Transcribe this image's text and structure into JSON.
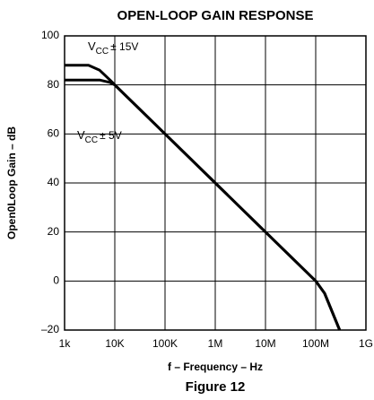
{
  "chart_data": {
    "type": "line",
    "title": "OPEN-LOOP GAIN RESPONSE",
    "x_label": "f – Frequency – Hz",
    "y_label": "Open0Loop Gain – dB",
    "caption": "Figure 12",
    "log_x": true,
    "grid": true,
    "xlim": [
      1000,
      1000000000
    ],
    "ylim": [
      -20,
      100
    ],
    "xticks": [
      {
        "value": 1000,
        "label": "1k"
      },
      {
        "value": 10000,
        "label": "10K"
      },
      {
        "value": 100000,
        "label": "100K"
      },
      {
        "value": 1000000,
        "label": "1M"
      },
      {
        "value": 10000000,
        "label": "10M"
      },
      {
        "value": 100000000,
        "label": "100M"
      },
      {
        "value": 1000000000,
        "label": "1G"
      }
    ],
    "yticks": [
      {
        "value": -20,
        "label": "–20"
      },
      0,
      20,
      40,
      60,
      80,
      100
    ],
    "series": [
      {
        "color": "#000000",
        "x": [
          1000,
          3000,
          5000,
          8000,
          10000,
          100000,
          1000000,
          10000000,
          100000000,
          150000000,
          300000000
        ],
        "values": [
          88,
          88,
          86,
          82,
          80,
          60,
          40,
          20,
          0,
          -5,
          -20
        ]
      },
      {
        "color": "#000000",
        "x": [
          1000,
          5000,
          8000,
          10000,
          100000,
          1000000,
          10000000,
          100000000,
          150000000,
          300000000
        ],
        "values": [
          82,
          82,
          81,
          80,
          60,
          40,
          20,
          0,
          -5,
          -20
        ]
      }
    ],
    "annotations": [
      {
        "base": "V",
        "sub": "CC",
        "rest": "± 15V"
      },
      {
        "base": "V",
        "sub": "CC",
        "rest": "± 5V"
      }
    ]
  }
}
